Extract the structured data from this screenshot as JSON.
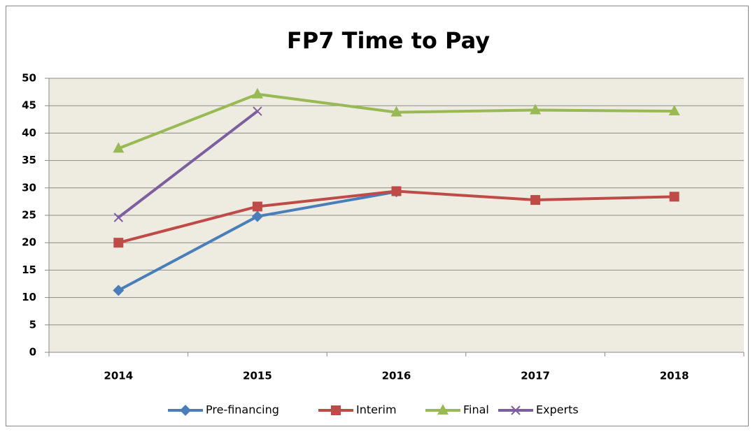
{
  "chart_data": {
    "type": "line",
    "title": "FP7 Time to Pay",
    "categories": [
      "2014",
      "2015",
      "2016",
      "2017",
      "2018"
    ],
    "series": [
      {
        "name": "Pre-financing",
        "color": "#4a7ebb",
        "marker": "diamond",
        "values": [
          11.3,
          24.8,
          29.3,
          null,
          null
        ]
      },
      {
        "name": "Interim",
        "color": "#be4b48",
        "marker": "square",
        "values": [
          20,
          26.6,
          29.4,
          27.8,
          28.4
        ]
      },
      {
        "name": "Final",
        "color": "#98b954",
        "marker": "triangle",
        "values": [
          37.2,
          47.1,
          43.8,
          44.2,
          44
        ]
      },
      {
        "name": "Experts",
        "color": "#7d5fa0",
        "marker": "x",
        "values": [
          24.6,
          44,
          null,
          null,
          null
        ]
      }
    ],
    "ylim": [
      0,
      50
    ],
    "yticks": [
      0,
      5,
      10,
      15,
      20,
      25,
      30,
      35,
      40,
      45,
      50
    ],
    "grid": true,
    "legend": "bottom"
  }
}
